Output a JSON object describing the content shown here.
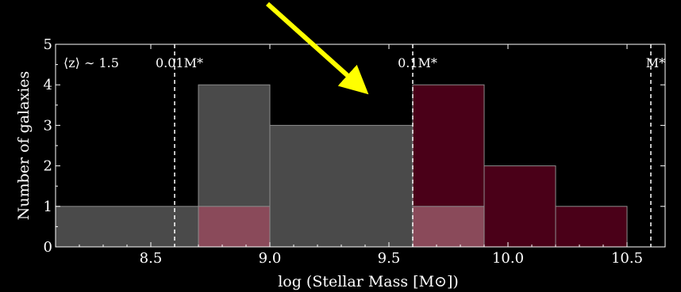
{
  "chart_data": {
    "type": "bar",
    "xlabel": "log (Stellar Mass [M⊙])",
    "ylabel": "Number of galaxies",
    "xlim": [
      8.1,
      10.66
    ],
    "ylim": [
      0,
      5
    ],
    "x_ticks": [
      8.5,
      9.0,
      9.5,
      10.0,
      10.5
    ],
    "x_tick_labels": [
      "8.5",
      "9.0",
      "9.5",
      "10.0",
      "10.5"
    ],
    "y_ticks": [
      0,
      1,
      2,
      3,
      4,
      5
    ],
    "y_tick_labels": [
      "0",
      "1",
      "2",
      "3",
      "4",
      "5"
    ],
    "grid": false,
    "redshift_label": "⟨z⟩ ∼ 1.5",
    "series": [
      {
        "color": "#4a4a4a",
        "bins": [
          {
            "x0": 8.1,
            "x1": 8.7,
            "count": 1
          },
          {
            "x0": 8.7,
            "x1": 9.0,
            "count": 4
          },
          {
            "x0": 9.0,
            "x1": 9.6,
            "count": 3
          }
        ]
      },
      {
        "color": "#4a0018",
        "bins": [
          {
            "x0": 9.6,
            "x1": 9.9,
            "count": 4
          },
          {
            "x0": 9.9,
            "x1": 10.2,
            "count": 2
          },
          {
            "x0": 10.2,
            "x1": 10.5,
            "count": 1
          }
        ]
      },
      {
        "color": "#8a4a5a",
        "bins": [
          {
            "x0": 8.7,
            "x1": 9.0,
            "count": 1
          },
          {
            "x0": 9.6,
            "x1": 9.9,
            "count": 1
          }
        ]
      }
    ],
    "reference_lines": [
      {
        "x": 8.6,
        "label": "0.01M*"
      },
      {
        "x": 9.6,
        "label": "0.1M*"
      },
      {
        "x": 10.6,
        "label": "M*"
      }
    ],
    "arrow": {
      "color": "#ffff00",
      "x_from": 8.99,
      "y_from": 6.0,
      "x_to": 9.37,
      "y_to": 4.0
    }
  }
}
